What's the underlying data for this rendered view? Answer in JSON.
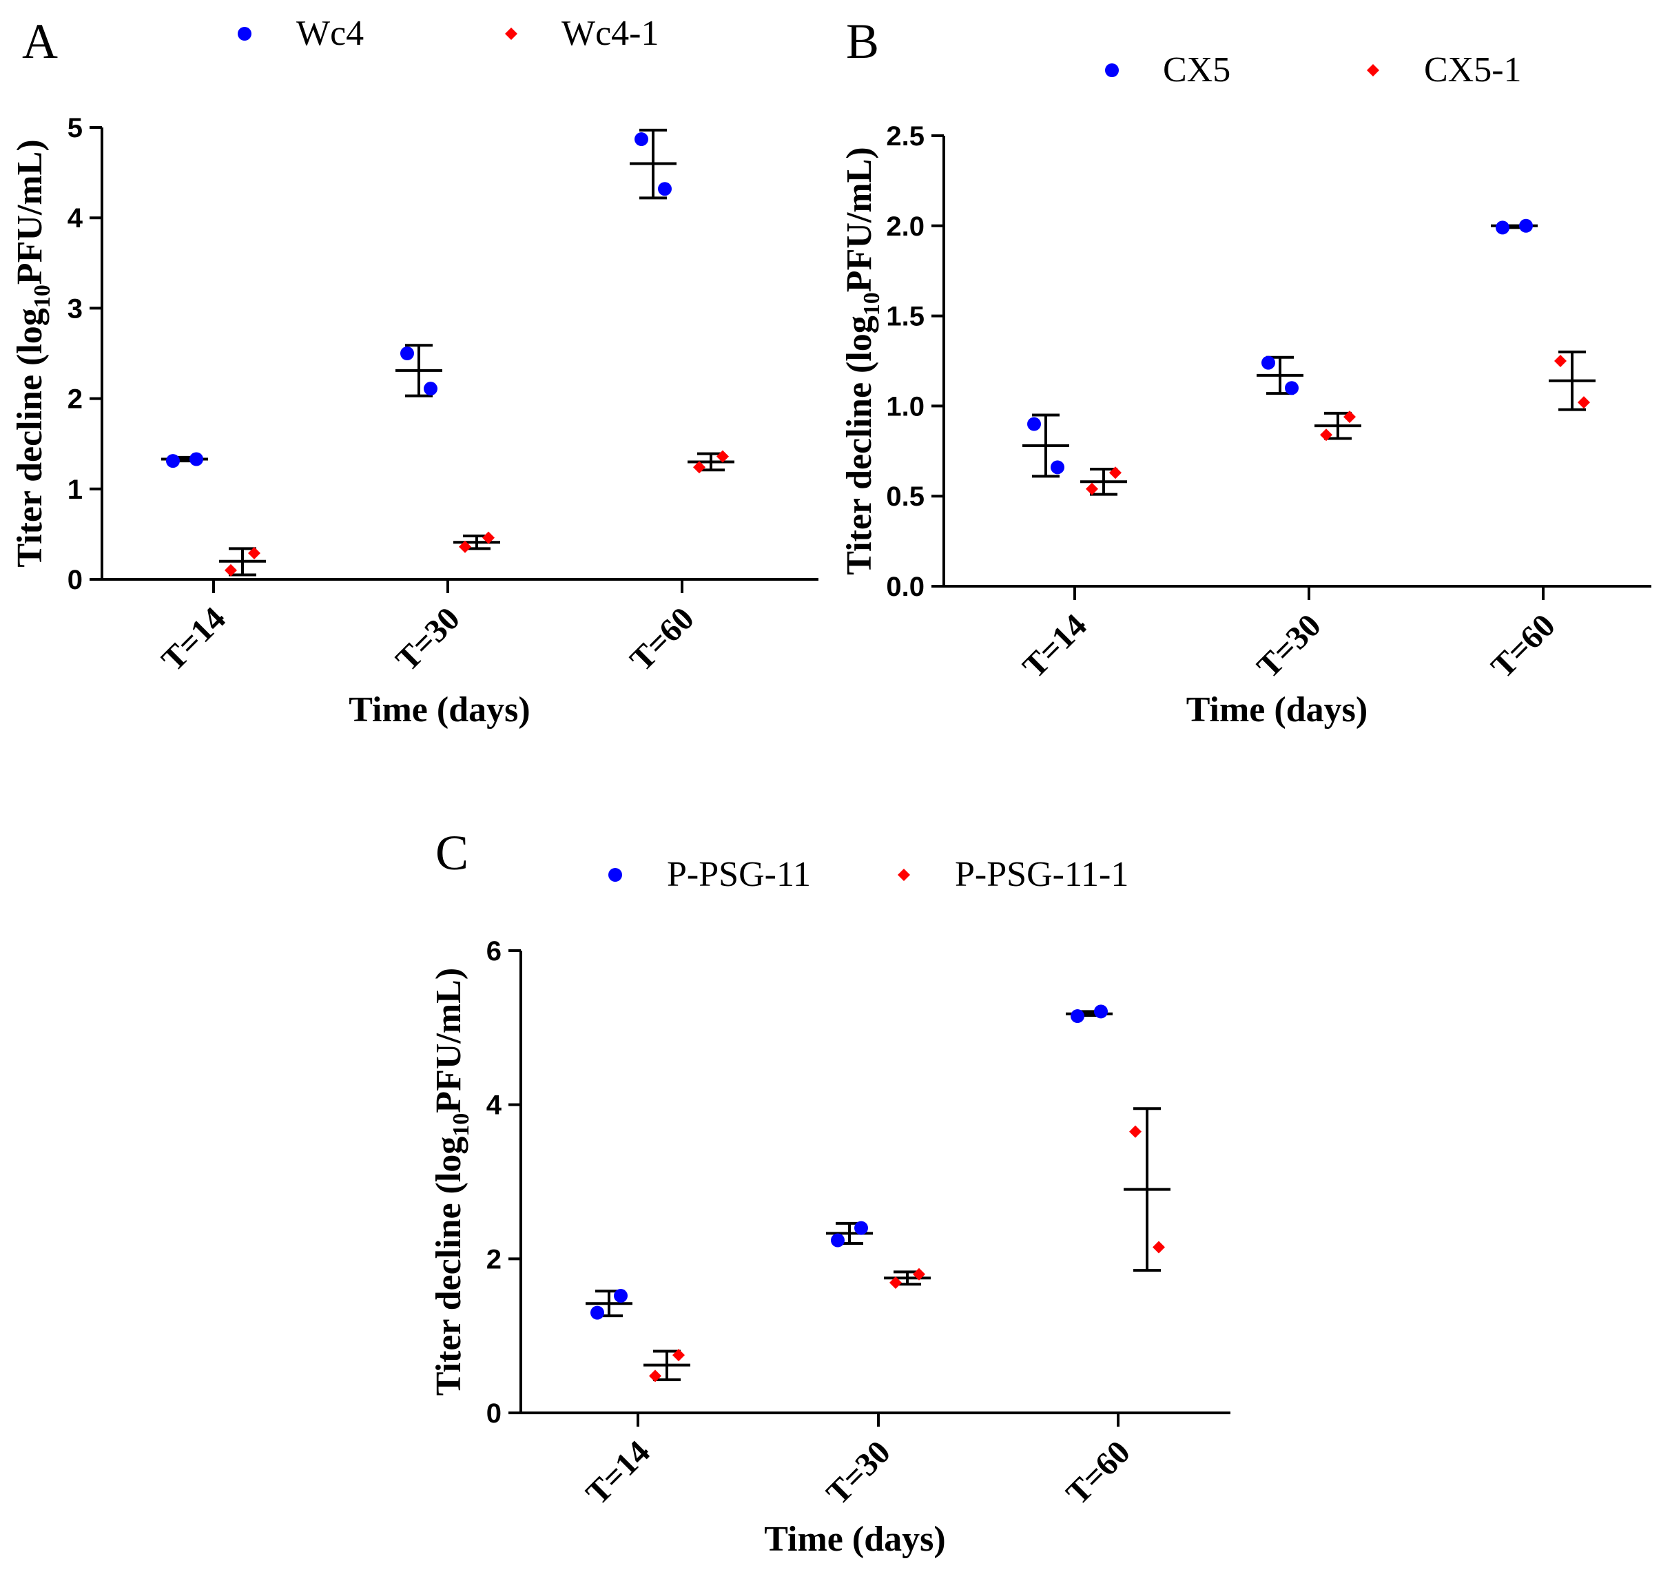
{
  "colors": {
    "series1": "#0000ff",
    "series2": "#ff0000",
    "ink": "#000000"
  },
  "chart_data": [
    {
      "panel": "A",
      "type": "scatter",
      "ylabel_prefix": "Titer decline (log",
      "ylabel_sub": "10",
      "ylabel_suffix": "PFU/mL)",
      "xlabel": "Time (days)",
      "categories": [
        "T=14",
        "T=30",
        "T=60"
      ],
      "ylim": [
        0,
        5
      ],
      "yticks": [
        0,
        1,
        2,
        3,
        4,
        5
      ],
      "ytick_labels": [
        "0",
        "1",
        "2",
        "3",
        "4",
        "5"
      ],
      "series": [
        {
          "name": "Wc4",
          "marker": "circle",
          "points": [
            [
              1.31,
              1.33
            ],
            [
              2.5,
              2.11
            ],
            [
              4.87,
              4.32
            ]
          ],
          "mean": [
            1.33,
            2.31,
            4.6
          ],
          "err_low": [
            1.31,
            2.03,
            4.22
          ],
          "err_high": [
            1.35,
            2.59,
            4.97
          ]
        },
        {
          "name": "Wc4-1",
          "marker": "diamond",
          "points": [
            [
              0.1,
              0.29
            ],
            [
              0.36,
              0.46
            ],
            [
              1.24,
              1.36
            ]
          ],
          "mean": [
            0.2,
            0.41,
            1.3
          ],
          "err_low": [
            0.05,
            0.34,
            1.21
          ],
          "err_high": [
            0.34,
            0.48,
            1.39
          ]
        }
      ]
    },
    {
      "panel": "B",
      "type": "scatter",
      "ylabel_prefix": "Titer decline (log",
      "ylabel_sub": "10",
      "ylabel_suffix": "PFU/mL)",
      "xlabel": "Time (days)",
      "categories": [
        "T=14",
        "T=30",
        "T=60"
      ],
      "ylim": [
        0,
        2.5
      ],
      "yticks": [
        0,
        0.5,
        1,
        1.5,
        2,
        2.5
      ],
      "ytick_labels": [
        "0.0",
        "0.5",
        "1.0",
        "1.5",
        "2.0",
        "2.5"
      ],
      "series": [
        {
          "name": "CX5",
          "marker": "circle",
          "points": [
            [
              0.9,
              0.66
            ],
            [
              1.24,
              1.1
            ],
            [
              1.99,
              2.0
            ]
          ],
          "mean": [
            0.78,
            1.17,
            2.0
          ],
          "err_low": [
            0.61,
            1.07,
            1.99
          ],
          "err_high": [
            0.95,
            1.27,
            2.0
          ]
        },
        {
          "name": "CX5-1",
          "marker": "diamond",
          "points": [
            [
              0.54,
              0.63
            ],
            [
              0.84,
              0.94
            ],
            [
              1.25,
              1.02
            ]
          ],
          "mean": [
            0.58,
            0.89,
            1.14
          ],
          "err_low": [
            0.51,
            0.82,
            0.98
          ],
          "err_high": [
            0.65,
            0.96,
            1.3
          ]
        }
      ]
    },
    {
      "panel": "C",
      "type": "scatter",
      "ylabel_prefix": "Titer decline (log",
      "ylabel_sub": "10",
      "ylabel_suffix": "PFU/mL)",
      "xlabel": "Time (days)",
      "categories": [
        "T=14",
        "T=30",
        "T=60"
      ],
      "ylim": [
        0,
        6
      ],
      "yticks": [
        0,
        2,
        4,
        6
      ],
      "ytick_labels": [
        "0",
        "2",
        "4",
        "6"
      ],
      "series": [
        {
          "name": "P-PSG-11",
          "marker": "circle",
          "points": [
            [
              1.3,
              1.52
            ],
            [
              2.24,
              2.4
            ],
            [
              5.15,
              5.21
            ]
          ],
          "mean": [
            1.42,
            2.33,
            5.18
          ],
          "err_low": [
            1.26,
            2.2,
            5.16
          ],
          "err_high": [
            1.58,
            2.46,
            5.21
          ]
        },
        {
          "name": "P-PSG-11-1",
          "marker": "diamond",
          "points": [
            [
              0.48,
              0.75
            ],
            [
              1.69,
              1.8
            ],
            [
              3.65,
              2.15
            ]
          ],
          "mean": [
            0.62,
            1.75,
            2.9
          ],
          "err_low": [
            0.43,
            1.67,
            1.85
          ],
          "err_high": [
            0.8,
            1.83,
            3.95
          ]
        }
      ]
    }
  ]
}
